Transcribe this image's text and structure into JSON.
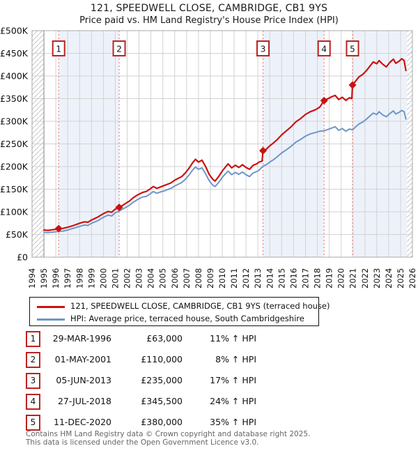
{
  "page": {
    "title_line1": "121, SPEEDWELL CLOSE, CAMBRIDGE, CB1 9YS",
    "title_line2": "Price paid vs. HM Land Registry's House Price Index (HPI)"
  },
  "colors": {
    "property": "#cc1111",
    "hpi": "#6e96c8",
    "sale_line": "#ee8282",
    "marker_box_border": "#bb2222",
    "band": "#edf2fa",
    "grid": "#d2d2d2",
    "frame": "#a8a8a8",
    "hatch": "#c6c6c6",
    "axis_text": "#111111"
  },
  "legend": {
    "items": [
      {
        "label": "121, SPEEDWELL CLOSE, CAMBRIDGE, CB1 9YS (terraced house)"
      },
      {
        "label": "HPI: Average price, terraced house, South Cambridgeshire"
      }
    ]
  },
  "chart_data": {
    "type": "line",
    "x_range": [
      1994,
      2026
    ],
    "y_range_k": [
      0,
      500
    ],
    "ylabel_units": "GBP",
    "grid": true,
    "x_ticks": [
      "1994",
      "1995",
      "1996",
      "1997",
      "1998",
      "1999",
      "2000",
      "2001",
      "2002",
      "2003",
      "2004",
      "2005",
      "2006",
      "2007",
      "2008",
      "2009",
      "2010",
      "2011",
      "2012",
      "2013",
      "2014",
      "2015",
      "2016",
      "2017",
      "2018",
      "2019",
      "2020",
      "2021",
      "2022",
      "2023",
      "2024",
      "2025",
      "2026"
    ],
    "y_tick_values": [
      0,
      50,
      100,
      150,
      200,
      250,
      300,
      350,
      400,
      450,
      500
    ],
    "y_tick_labels": [
      "£0",
      "£50K",
      "£100K",
      "£150K",
      "£200K",
      "£250K",
      "£300K",
      "£350K",
      "£400K",
      "£450K",
      "£500K"
    ],
    "shaded_bands": [
      [
        1996.24,
        2001.33
      ],
      [
        2013.43,
        2018.57
      ],
      [
        2020.96,
        2025.55
      ]
    ],
    "hatch_bands": [
      [
        1994,
        1995
      ],
      [
        2025.55,
        2026
      ]
    ],
    "sale_events": [
      {
        "n": "1",
        "year": 1996.24,
        "price_k": 63
      },
      {
        "n": "2",
        "year": 2001.33,
        "price_k": 110
      },
      {
        "n": "3",
        "year": 2013.43,
        "price_k": 235
      },
      {
        "n": "4",
        "year": 2018.57,
        "price_k": 345.5
      },
      {
        "n": "5",
        "year": 2020.96,
        "price_k": 380
      }
    ],
    "series": [
      {
        "key": "hpi",
        "name": "HPI: Average price, terraced house, South Cambridgeshire",
        "points": [
          [
            1995.0,
            55
          ],
          [
            1995.3,
            54
          ],
          [
            1995.6,
            55
          ],
          [
            1996.0,
            56
          ],
          [
            1996.24,
            57
          ],
          [
            1996.6,
            57.5
          ],
          [
            1997.0,
            60
          ],
          [
            1997.5,
            64
          ],
          [
            1998.0,
            68
          ],
          [
            1998.4,
            71
          ],
          [
            1998.7,
            70
          ],
          [
            1999.0,
            75
          ],
          [
            1999.5,
            80
          ],
          [
            2000.0,
            88
          ],
          [
            2000.4,
            93
          ],
          [
            2000.7,
            91
          ],
          [
            2001.0,
            98
          ],
          [
            2001.33,
            102
          ],
          [
            2001.6,
            106
          ],
          [
            2001.9,
            110
          ],
          [
            2002.2,
            115
          ],
          [
            2002.5,
            121
          ],
          [
            2002.8,
            126
          ],
          [
            2003.0,
            129
          ],
          [
            2003.3,
            133
          ],
          [
            2003.6,
            134
          ],
          [
            2003.9,
            139
          ],
          [
            2004.2,
            145
          ],
          [
            2004.5,
            141
          ],
          [
            2004.8,
            144
          ],
          [
            2005.1,
            146
          ],
          [
            2005.4,
            149
          ],
          [
            2005.7,
            152
          ],
          [
            2006.0,
            157
          ],
          [
            2006.3,
            161
          ],
          [
            2006.6,
            165
          ],
          [
            2006.9,
            172
          ],
          [
            2007.2,
            181
          ],
          [
            2007.5,
            192
          ],
          [
            2007.75,
            199
          ],
          [
            2008.0,
            194
          ],
          [
            2008.3,
            197
          ],
          [
            2008.6,
            184
          ],
          [
            2008.9,
            169
          ],
          [
            2009.2,
            159
          ],
          [
            2009.4,
            156
          ],
          [
            2009.7,
            165
          ],
          [
            2010.0,
            176
          ],
          [
            2010.3,
            185
          ],
          [
            2010.5,
            190
          ],
          [
            2010.8,
            182
          ],
          [
            2011.1,
            187
          ],
          [
            2011.4,
            183
          ],
          [
            2011.7,
            188
          ],
          [
            2012.0,
            182
          ],
          [
            2012.3,
            178
          ],
          [
            2012.6,
            186
          ],
          [
            2012.9,
            189
          ],
          [
            2013.1,
            192
          ],
          [
            2013.43,
            201
          ],
          [
            2013.7,
            204
          ],
          [
            2014.0,
            210
          ],
          [
            2014.3,
            215
          ],
          [
            2014.6,
            221
          ],
          [
            2015.0,
            230
          ],
          [
            2015.4,
            237
          ],
          [
            2015.8,
            245
          ],
          [
            2016.2,
            254
          ],
          [
            2016.6,
            260
          ],
          [
            2017.0,
            267
          ],
          [
            2017.4,
            272
          ],
          [
            2017.8,
            275
          ],
          [
            2018.2,
            278
          ],
          [
            2018.57,
            279
          ],
          [
            2018.9,
            282
          ],
          [
            2019.2,
            285
          ],
          [
            2019.5,
            288
          ],
          [
            2019.8,
            280
          ],
          [
            2020.1,
            284
          ],
          [
            2020.4,
            278
          ],
          [
            2020.7,
            283
          ],
          [
            2020.96,
            281
          ],
          [
            2021.2,
            287
          ],
          [
            2021.5,
            294
          ],
          [
            2021.8,
            298
          ],
          [
            2022.1,
            304
          ],
          [
            2022.4,
            311
          ],
          [
            2022.7,
            318
          ],
          [
            2023.0,
            315
          ],
          [
            2023.2,
            321
          ],
          [
            2023.5,
            314
          ],
          [
            2023.8,
            310
          ],
          [
            2024.1,
            317
          ],
          [
            2024.4,
            323
          ],
          [
            2024.6,
            316
          ],
          [
            2024.9,
            320
          ],
          [
            2025.1,
            324
          ],
          [
            2025.3,
            321
          ],
          [
            2025.45,
            305
          ]
        ]
      },
      {
        "key": "property",
        "name": "121, SPEEDWELL CLOSE, CAMBRIDGE, CB1 9YS (terraced house)",
        "points": [
          [
            1995.0,
            60
          ],
          [
            1995.3,
            59
          ],
          [
            1995.6,
            60
          ],
          [
            1996.0,
            61.5
          ],
          [
            1996.24,
            63
          ],
          [
            1996.6,
            63.5
          ],
          [
            1997.0,
            66
          ],
          [
            1997.5,
            70
          ],
          [
            1998.0,
            75
          ],
          [
            1998.4,
            78
          ],
          [
            1998.7,
            77
          ],
          [
            1999.0,
            82
          ],
          [
            1999.5,
            88
          ],
          [
            2000.0,
            96
          ],
          [
            2000.4,
            101
          ],
          [
            2000.7,
            99
          ],
          [
            2001.0,
            106
          ],
          [
            2001.33,
            110
          ],
          [
            2001.6,
            114
          ],
          [
            2001.9,
            119
          ],
          [
            2002.2,
            124
          ],
          [
            2002.5,
            131
          ],
          [
            2002.8,
            136
          ],
          [
            2003.0,
            139
          ],
          [
            2003.3,
            143
          ],
          [
            2003.6,
            145
          ],
          [
            2003.9,
            150
          ],
          [
            2004.2,
            156
          ],
          [
            2004.5,
            152
          ],
          [
            2004.8,
            155
          ],
          [
            2005.1,
            158
          ],
          [
            2005.4,
            161
          ],
          [
            2005.7,
            164
          ],
          [
            2006.0,
            170
          ],
          [
            2006.3,
            174
          ],
          [
            2006.6,
            178
          ],
          [
            2006.9,
            186
          ],
          [
            2007.2,
            196
          ],
          [
            2007.5,
            208
          ],
          [
            2007.75,
            216
          ],
          [
            2008.0,
            210
          ],
          [
            2008.3,
            214
          ],
          [
            2008.6,
            200
          ],
          [
            2008.9,
            183
          ],
          [
            2009.2,
            172
          ],
          [
            2009.4,
            168
          ],
          [
            2009.7,
            178
          ],
          [
            2010.0,
            190
          ],
          [
            2010.3,
            200
          ],
          [
            2010.5,
            206
          ],
          [
            2010.8,
            197
          ],
          [
            2011.1,
            203
          ],
          [
            2011.4,
            198
          ],
          [
            2011.7,
            204
          ],
          [
            2012.0,
            198
          ],
          [
            2012.3,
            194
          ],
          [
            2012.6,
            203
          ],
          [
            2012.9,
            206
          ],
          [
            2013.1,
            210
          ],
          [
            2013.35,
            212
          ],
          [
            2013.43,
            235
          ],
          [
            2013.7,
            238
          ],
          [
            2014.0,
            246
          ],
          [
            2014.3,
            252
          ],
          [
            2014.6,
            259
          ],
          [
            2015.0,
            270
          ],
          [
            2015.4,
            279
          ],
          [
            2015.8,
            288
          ],
          [
            2016.2,
            299
          ],
          [
            2016.6,
            306
          ],
          [
            2017.0,
            315
          ],
          [
            2017.4,
            321
          ],
          [
            2017.8,
            325
          ],
          [
            2018.2,
            331
          ],
          [
            2018.57,
            345.5
          ],
          [
            2018.9,
            350
          ],
          [
            2019.2,
            354
          ],
          [
            2019.5,
            357
          ],
          [
            2019.8,
            348
          ],
          [
            2020.1,
            353
          ],
          [
            2020.4,
            346
          ],
          [
            2020.7,
            352
          ],
          [
            2020.9,
            350
          ],
          [
            2020.96,
            380
          ],
          [
            2021.2,
            388
          ],
          [
            2021.5,
            398
          ],
          [
            2021.8,
            403
          ],
          [
            2022.1,
            411
          ],
          [
            2022.4,
            421
          ],
          [
            2022.7,
            431
          ],
          [
            2023.0,
            427
          ],
          [
            2023.2,
            434
          ],
          [
            2023.5,
            426
          ],
          [
            2023.8,
            420
          ],
          [
            2024.1,
            430
          ],
          [
            2024.4,
            437
          ],
          [
            2024.6,
            428
          ],
          [
            2024.9,
            433
          ],
          [
            2025.1,
            438
          ],
          [
            2025.3,
            434
          ],
          [
            2025.45,
            412
          ]
        ]
      }
    ]
  },
  "sales_table": {
    "rows": [
      {
        "num": "1",
        "date": "29-MAR-1996",
        "price": "£63,000",
        "vs_hpi": "11% ↑ HPI"
      },
      {
        "num": "2",
        "date": "01-MAY-2001",
        "price": "£110,000",
        "vs_hpi": "8% ↑ HPI"
      },
      {
        "num": "3",
        "date": "05-JUN-2013",
        "price": "£235,000",
        "vs_hpi": "17% ↑ HPI"
      },
      {
        "num": "4",
        "date": "27-JUL-2018",
        "price": "£345,500",
        "vs_hpi": "24% ↑ HPI"
      },
      {
        "num": "5",
        "date": "11-DEC-2020",
        "price": "£380,000",
        "vs_hpi": "35% ↑ HPI"
      }
    ]
  },
  "footer": {
    "line1": "Contains HM Land Registry data © Crown copyright and database right 2025.",
    "line2": "This data is licensed under the Open Government Licence v3.0."
  }
}
